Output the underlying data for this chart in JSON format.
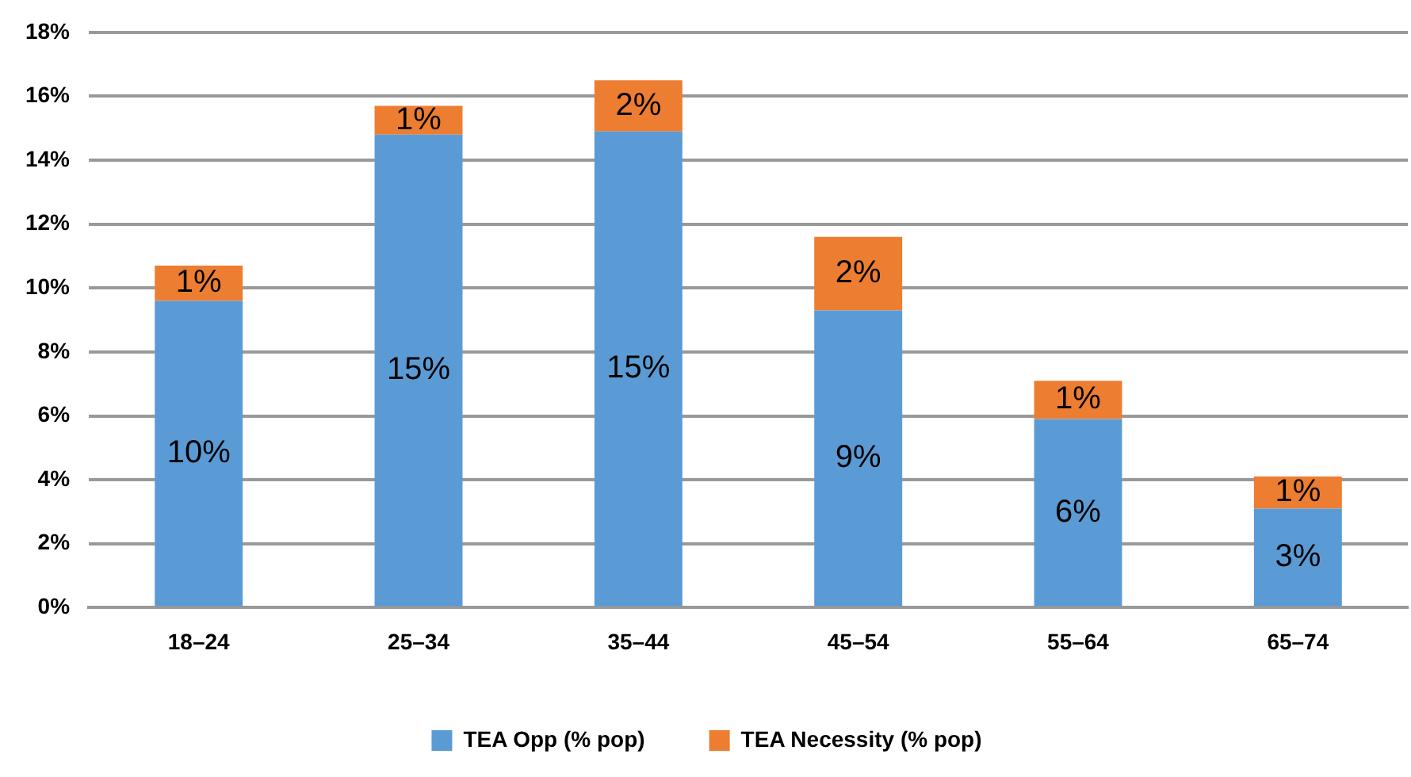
{
  "chart_data": {
    "type": "bar",
    "stacked": true,
    "categories": [
      "18–24",
      "25–34",
      "35–44",
      "45–54",
      "55–64",
      "65–74"
    ],
    "series": [
      {
        "name": "TEA Opp (% pop)",
        "color": "#5b9bd5",
        "values": [
          9.6,
          14.8,
          14.9,
          9.3,
          5.9,
          3.1
        ],
        "value_labels": [
          "10%",
          "15%",
          "15%",
          "9%",
          "6%",
          "3%"
        ]
      },
      {
        "name": "TEA Necessity (% pop)",
        "color": "#ed7d31",
        "values": [
          1.1,
          0.9,
          1.6,
          2.3,
          1.2,
          1.0
        ],
        "value_labels": [
          "1%",
          "1%",
          "2%",
          "2%",
          "1%",
          "1%"
        ]
      }
    ],
    "ylim": [
      0,
      18
    ],
    "yticks": [
      {
        "value": 0,
        "label": "0%"
      },
      {
        "value": 2,
        "label": "2%"
      },
      {
        "value": 4,
        "label": "4%"
      },
      {
        "value": 6,
        "label": "6%"
      },
      {
        "value": 8,
        "label": "8%"
      },
      {
        "value": 10,
        "label": "10%"
      },
      {
        "value": 12,
        "label": "12%"
      },
      {
        "value": 14,
        "label": "14%"
      },
      {
        "value": 16,
        "label": "16%"
      },
      {
        "value": 18,
        "label": "18%"
      }
    ],
    "grid": "y",
    "legend": "bottom"
  }
}
